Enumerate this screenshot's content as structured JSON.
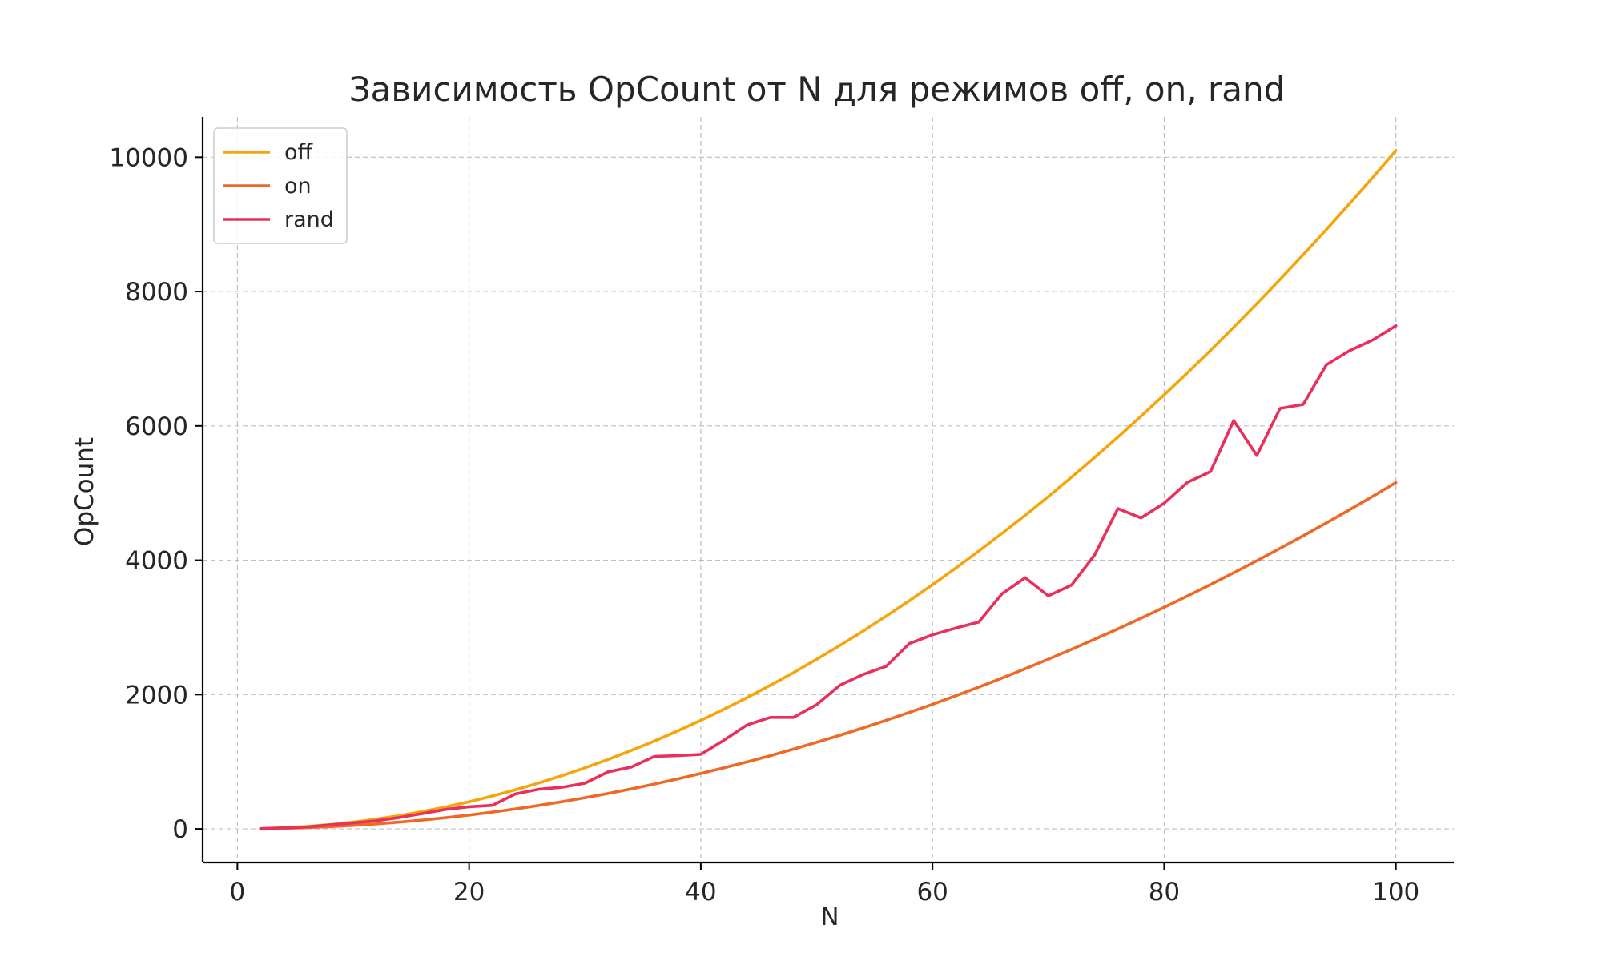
{
  "chart_data": {
    "type": "line",
    "title": "Зависимость OpCount от N для режимов off, on, rand",
    "xlabel": "N",
    "ylabel": "OpCount",
    "xlim": [
      -3,
      105
    ],
    "ylim": [
      -500,
      10600
    ],
    "xticks": [
      0,
      20,
      40,
      60,
      80,
      100
    ],
    "yticks": [
      0,
      2000,
      4000,
      6000,
      8000,
      10000
    ],
    "grid": true,
    "legend_position": "top-left",
    "x": [
      2,
      4,
      6,
      8,
      10,
      12,
      14,
      16,
      18,
      20,
      22,
      24,
      26,
      28,
      30,
      32,
      34,
      36,
      38,
      40,
      42,
      44,
      46,
      48,
      50,
      52,
      54,
      56,
      58,
      60,
      62,
      64,
      66,
      68,
      70,
      72,
      74,
      76,
      78,
      80,
      82,
      84,
      86,
      88,
      90,
      92,
      94,
      96,
      98,
      100
    ],
    "series": [
      {
        "name": "off",
        "color": "#F5A50A",
        "values": [
          4,
          16,
          36,
          64,
          101,
          146,
          198,
          259,
          327,
          404,
          489,
          582,
          683,
          792,
          909,
          1034,
          1168,
          1309,
          1459,
          1616,
          1782,
          1956,
          2138,
          2327,
          2525,
          2731,
          2945,
          3168,
          3398,
          3636,
          3883,
          4137,
          4400,
          4670,
          4949,
          5236,
          5530,
          5833,
          6144,
          6463,
          6791,
          7126,
          7469,
          7821,
          8181,
          8548,
          8924,
          9308,
          9700,
          10100
        ]
      },
      {
        "name": "on",
        "color": "#ED6925",
        "values": [
          2,
          8,
          19,
          33,
          52,
          75,
          101,
          132,
          167,
          206,
          250,
          297,
          349,
          404,
          464,
          528,
          596,
          668,
          745,
          825,
          910,
          998,
          1091,
          1188,
          1289,
          1394,
          1503,
          1617,
          1734,
          1856,
          1982,
          2112,
          2246,
          2384,
          2527,
          2673,
          2824,
          2978,
          3137,
          3300,
          3467,
          3638,
          3814,
          3993,
          4177,
          4364,
          4556,
          4752,
          4952,
          5156
        ]
      },
      {
        "name": "rand",
        "color": "#E8305A",
        "values": [
          3,
          15,
          28,
          60,
          90,
          120,
          170,
          230,
          290,
          330,
          350,
          520,
          590,
          620,
          680,
          850,
          920,
          1080,
          1090,
          1110,
          1320,
          1550,
          1660,
          1660,
          1850,
          2140,
          2300,
          2420,
          2760,
          2890,
          2990,
          3080,
          3500,
          3740,
          3470,
          3630,
          4080,
          4770,
          4630,
          4850,
          5160,
          5320,
          6080,
          5560,
          6260,
          6320,
          6910,
          7120,
          7280,
          7490
        ]
      }
    ]
  }
}
